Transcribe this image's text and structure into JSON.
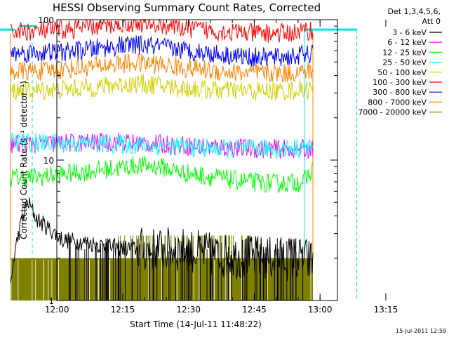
{
  "chart_data": {
    "type": "line",
    "title": "HESSI Observing Summary Count Rates, Corrected",
    "xlabel": "Start Time (14-Jul-11 11:48:22)",
    "ylabel": "Corrected Count Rate (s⁻¹ detector⁻¹)",
    "yscale": "log",
    "ylim": [
      1,
      100
    ],
    "xlim_minutes": [
      11.6,
      75.6
    ],
    "x_ticks": [
      {
        "label": "12:00",
        "min": 11.63
      },
      {
        "label": "12:15",
        "min": 26.63
      },
      {
        "label": "12:30",
        "min": 41.63
      },
      {
        "label": "12:45",
        "min": 56.63
      },
      {
        "label": "13:00",
        "min": 71.63
      },
      {
        "label": "13:15",
        "min": 86.63
      }
    ],
    "y_ticks": [
      {
        "label": "100",
        "value": 100
      },
      {
        "label": "10",
        "value": 10
      },
      {
        "label": "1",
        "value": 1
      }
    ],
    "legend_header": [
      "Det 1,3,4,5,6,",
      "Att 0"
    ],
    "legend_position": "right",
    "series": [
      {
        "name": "3 - 6 keV",
        "color": "#000000",
        "kind": "noise-low",
        "points": [
          [
            1,
            1.2
          ],
          [
            5,
            5
          ],
          [
            7,
            3.8
          ],
          [
            10,
            3.2
          ],
          [
            13,
            2.7
          ],
          [
            18,
            2.6
          ],
          [
            24,
            2.4
          ],
          [
            32,
            2.3
          ],
          [
            40,
            2.3
          ],
          [
            48,
            2.1
          ],
          [
            58,
            2.0
          ],
          [
            66,
            2.0
          ],
          [
            70,
            1.9
          ]
        ]
      },
      {
        "name": "6 - 12 keV",
        "color": "#ff00ff",
        "kind": "noise",
        "points": [
          [
            1,
            13
          ],
          [
            8,
            13
          ],
          [
            14,
            13.2
          ],
          [
            20,
            13.3
          ],
          [
            26,
            13.5
          ],
          [
            30,
            13.2
          ],
          [
            38,
            12.8
          ],
          [
            45,
            12.5
          ],
          [
            52,
            12.2
          ],
          [
            60,
            12
          ],
          [
            66,
            12
          ],
          [
            70,
            12
          ]
        ]
      },
      {
        "name": "12 - 25 keV",
        "color": "#00ff00",
        "kind": "noise",
        "points": [
          [
            1,
            7.5
          ],
          [
            8,
            7.6
          ],
          [
            14,
            8
          ],
          [
            20,
            8.4
          ],
          [
            26,
            8.8
          ],
          [
            30,
            9.2
          ],
          [
            35,
            9
          ],
          [
            40,
            8.2
          ],
          [
            48,
            7.5
          ],
          [
            55,
            7
          ],
          [
            62,
            6.8
          ],
          [
            68,
            7
          ],
          [
            70,
            8.5
          ]
        ]
      },
      {
        "name": "25 - 50 keV",
        "color": "#00ffff",
        "kind": "noise",
        "points": [
          [
            1,
            13.5
          ],
          [
            8,
            13.3
          ],
          [
            14,
            13.2
          ],
          [
            20,
            13
          ],
          [
            26,
            13
          ],
          [
            30,
            12.8
          ],
          [
            38,
            12.5
          ],
          [
            45,
            12.2
          ],
          [
            52,
            12
          ],
          [
            60,
            12
          ],
          [
            66,
            12.2
          ],
          [
            70,
            12.5
          ]
        ]
      },
      {
        "name": "50 - 100 keV",
        "color": "#d0d000",
        "kind": "noise",
        "points": [
          [
            1,
            31
          ],
          [
            8,
            31.5
          ],
          [
            14,
            32
          ],
          [
            20,
            33
          ],
          [
            26,
            34.5
          ],
          [
            30,
            35
          ],
          [
            35,
            34
          ],
          [
            40,
            32.5
          ],
          [
            48,
            31.5
          ],
          [
            56,
            31
          ],
          [
            64,
            31
          ],
          [
            70,
            32
          ]
        ]
      },
      {
        "name": "100 - 300 keV",
        "color": "#ff0000",
        "kind": "noise",
        "points": [
          [
            1,
            82
          ],
          [
            8,
            83
          ],
          [
            14,
            85
          ],
          [
            20,
            89
          ],
          [
            26,
            94
          ],
          [
            30,
            95
          ],
          [
            35,
            92
          ],
          [
            40,
            88
          ],
          [
            48,
            83
          ],
          [
            56,
            80
          ],
          [
            64,
            80
          ],
          [
            70,
            84
          ]
        ]
      },
      {
        "name": "300 - 800 keV",
        "color": "#0000ff",
        "kind": "noise",
        "points": [
          [
            1,
            58
          ],
          [
            8,
            58
          ],
          [
            14,
            59
          ],
          [
            20,
            62
          ],
          [
            26,
            65
          ],
          [
            30,
            66
          ],
          [
            35,
            64
          ],
          [
            40,
            61
          ],
          [
            48,
            57
          ],
          [
            56,
            54
          ],
          [
            64,
            54
          ],
          [
            70,
            57
          ]
        ]
      },
      {
        "name": "800 - 7000 keV",
        "color": "#ff8000",
        "kind": "noise",
        "points": [
          [
            1,
            43
          ],
          [
            8,
            43
          ],
          [
            14,
            44.5
          ],
          [
            20,
            46.5
          ],
          [
            26,
            48.5
          ],
          [
            30,
            49
          ],
          [
            35,
            48
          ],
          [
            40,
            45.5
          ],
          [
            48,
            43
          ],
          [
            56,
            41.5
          ],
          [
            64,
            41.5
          ],
          [
            70,
            43
          ]
        ]
      },
      {
        "name": "7000 - 20000 keV",
        "color": "#808000",
        "kind": "olive",
        "points": [
          [
            1,
            2
          ],
          [
            70,
            2
          ]
        ]
      }
    ],
    "markers": [
      {
        "name": "attenuator-flag-bars",
        "color": "#00e5e5",
        "y_value": 85
      }
    ]
  },
  "timestamp": "15-Jul-2011 12:59"
}
